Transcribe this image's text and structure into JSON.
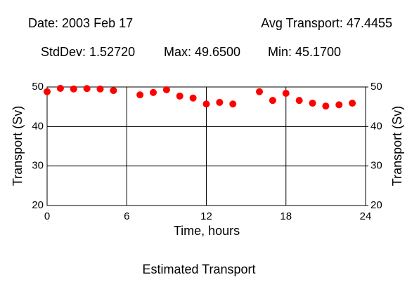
{
  "chart_data": {
    "type": "scatter",
    "title": "Estimated Transport",
    "annotations": [
      "Date: 2003 Feb 17",
      "Avg Transport: 47.4455",
      "StdDev: 1.52720",
      "Max: 49.6500",
      "Min: 45.1700"
    ],
    "xlabel": "Time, hours",
    "ylabel": "Transport (Sv)",
    "y2label": "Transport (Sv)",
    "x": [
      0,
      1,
      2,
      3,
      4,
      5,
      7,
      8,
      9,
      10,
      11,
      12,
      13,
      14,
      16,
      17,
      18,
      19,
      20,
      21,
      22,
      23
    ],
    "values": [
      48.8,
      49.65,
      49.5,
      49.6,
      49.5,
      49.1,
      48.0,
      48.6,
      49.3,
      47.7,
      47.2,
      45.7,
      46.1,
      45.7,
      48.8,
      46.6,
      48.4,
      46.6,
      45.9,
      45.17,
      45.5,
      45.9
    ],
    "color": "#ff0000",
    "xlim": [
      0,
      24
    ],
    "xticks": [
      0,
      6,
      12,
      18,
      24
    ],
    "ylim": [
      20,
      50
    ],
    "yticks": [
      20,
      30,
      40,
      50
    ],
    "y2lim": [
      20,
      50
    ],
    "y2ticks": [
      20,
      30,
      40,
      50
    ],
    "grid": true
  }
}
